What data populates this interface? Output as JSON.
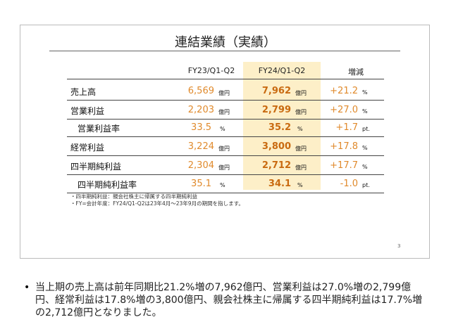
{
  "slide": {
    "title": "連結業績（実績）",
    "table": {
      "headers": [
        "FY23/Q1-Q2",
        "FY24/Q1-Q2",
        "増減"
      ],
      "rows": [
        {
          "label": "売上高",
          "prev": "6,569",
          "prev_unit": "億円",
          "curr": "7,962",
          "curr_unit": "億円",
          "change": "+21.2",
          "change_unit": "%"
        },
        {
          "label": "営業利益",
          "prev": "2,203",
          "prev_unit": "億円",
          "curr": "2,799",
          "curr_unit": "億円",
          "change": "+27.0",
          "change_unit": "%"
        },
        {
          "label": "営業利益率",
          "prev": "33.5",
          "prev_unit": "%",
          "curr": "35.2",
          "curr_unit": "%",
          "change": "+1.7",
          "change_unit": "pt."
        },
        {
          "label": "経常利益",
          "prev": "3,224",
          "prev_unit": "億円",
          "curr": "3,800",
          "curr_unit": "億円",
          "change": "+17.8",
          "change_unit": "%"
        },
        {
          "label": "四半期純利益",
          "prev": "2,304",
          "prev_unit": "億円",
          "curr": "2,712",
          "curr_unit": "億円",
          "change": "+17.7",
          "change_unit": "%"
        },
        {
          "label": "四半期純利益率",
          "prev": "35.1",
          "prev_unit": "%",
          "curr": "34.1",
          "curr_unit": "%",
          "change": "-1.0",
          "change_unit": "pt."
        }
      ]
    },
    "notes": [
      "・四半期純利益：親会社株主に帰属する四半期純利益",
      "・FY=会計年度：FY24/Q1-Q2は23年4月～23年9月の期間を指します。"
    ],
    "page": "3"
  },
  "summary": "当上期の売上高は前年同期比21.2%増の7,962億円、営業利益は27.0%増の2,799億円、経常利益は17.8%増の3,800億円、親会社株主に帰属する四半期純利益は17.7%増の2,712億円となりました。"
}
